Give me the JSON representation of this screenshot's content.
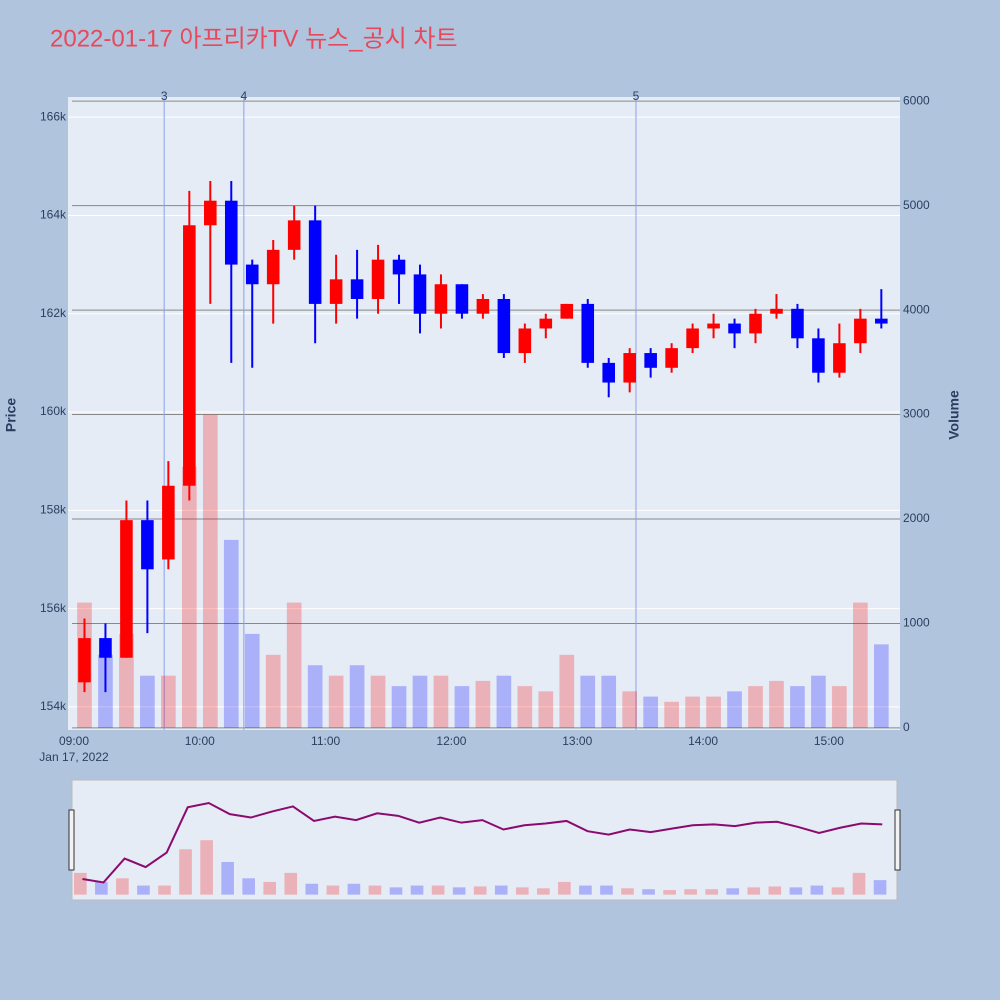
{
  "chart_data": {
    "type": "candlestick",
    "title": "2022-01-17 아프리카TV 뉴스_공시 차트",
    "x": [
      "09:00",
      "09:10",
      "09:20",
      "09:30",
      "09:40",
      "09:50",
      "10:00",
      "10:10",
      "10:20",
      "10:30",
      "10:40",
      "10:50",
      "11:00",
      "11:10",
      "11:20",
      "11:30",
      "11:40",
      "11:50",
      "12:00",
      "12:10",
      "12:20",
      "12:30",
      "12:40",
      "12:50",
      "13:00",
      "13:10",
      "13:20",
      "13:30",
      "13:40",
      "13:50",
      "14:00",
      "14:10",
      "14:20",
      "14:30",
      "14:40",
      "14:50",
      "15:00",
      "15:10",
      "15:20"
    ],
    "open": [
      154500,
      155400,
      155000,
      157800,
      157000,
      158500,
      163800,
      164300,
      163000,
      162600,
      163300,
      163900,
      162200,
      162700,
      162300,
      163100,
      162800,
      162000,
      162600,
      162000,
      162300,
      161200,
      161700,
      161900,
      162200,
      161000,
      160600,
      161200,
      160900,
      161300,
      161700,
      161800,
      161600,
      162000,
      162100,
      161500,
      160800,
      161400,
      161900
    ],
    "high": [
      155800,
      155700,
      158200,
      158200,
      159000,
      164500,
      164700,
      164700,
      163100,
      163500,
      164200,
      164200,
      163200,
      163300,
      163400,
      163200,
      163000,
      162800,
      162600,
      162400,
      162400,
      161800,
      162000,
      162200,
      162300,
      161100,
      161300,
      161300,
      161400,
      161800,
      162000,
      161900,
      162100,
      162400,
      162200,
      161700,
      161800,
      162100,
      162500
    ],
    "low": [
      154300,
      154300,
      155000,
      155500,
      156800,
      158200,
      162200,
      161000,
      160900,
      161800,
      163100,
      161400,
      161800,
      161900,
      162000,
      162200,
      161600,
      161700,
      161900,
      161900,
      161100,
      161000,
      161500,
      161900,
      160900,
      160300,
      160400,
      160700,
      160800,
      161200,
      161500,
      161300,
      161400,
      161900,
      161300,
      160600,
      160700,
      161200,
      161700
    ],
    "close": [
      155400,
      155000,
      157800,
      156800,
      158500,
      163800,
      164300,
      163000,
      162600,
      163300,
      163900,
      162200,
      162700,
      162300,
      163100,
      162800,
      162000,
      162600,
      162000,
      162300,
      161200,
      161700,
      161900,
      162200,
      161000,
      160600,
      161200,
      160900,
      161300,
      161700,
      161800,
      161600,
      162000,
      162100,
      161500,
      160800,
      161400,
      161900,
      161800
    ],
    "volume": [
      1200,
      700,
      900,
      500,
      500,
      2500,
      3000,
      1800,
      900,
      700,
      1200,
      600,
      500,
      600,
      500,
      400,
      500,
      500,
      400,
      450,
      500,
      400,
      350,
      700,
      500,
      500,
      350,
      300,
      250,
      300,
      300,
      350,
      400,
      450,
      400,
      500,
      400,
      1200,
      800
    ],
    "up_color": "#ff0000",
    "down_color": "#0000ff",
    "xlim": [
      "09:00",
      "15:32"
    ],
    "xticks": [
      "09:00",
      "10:00",
      "11:00",
      "12:00",
      "13:00",
      "14:00",
      "15:00"
    ],
    "x_date_label": "Jan 17, 2022",
    "ylim": [
      153530,
      166410
    ],
    "yticks": [
      {
        "value": 154000,
        "label": "154k"
      },
      {
        "value": 156000,
        "label": "156k"
      },
      {
        "value": 158000,
        "label": "158k"
      },
      {
        "value": 160000,
        "label": "160k"
      },
      {
        "value": 162000,
        "label": "162k"
      },
      {
        "value": 164000,
        "label": "164k"
      },
      {
        "value": 166000,
        "label": "166k"
      }
    ],
    "y2lim": [
      -20,
      6040
    ],
    "y2ticks": [
      0,
      1000,
      2000,
      3000,
      4000,
      5000,
      6000
    ],
    "y_label": "Price",
    "y2_label": "Volume",
    "vlines": [
      {
        "x": "09:43",
        "label": "3"
      },
      {
        "x": "10:21",
        "label": "4"
      },
      {
        "x": "13:28",
        "label": "5"
      }
    ]
  }
}
